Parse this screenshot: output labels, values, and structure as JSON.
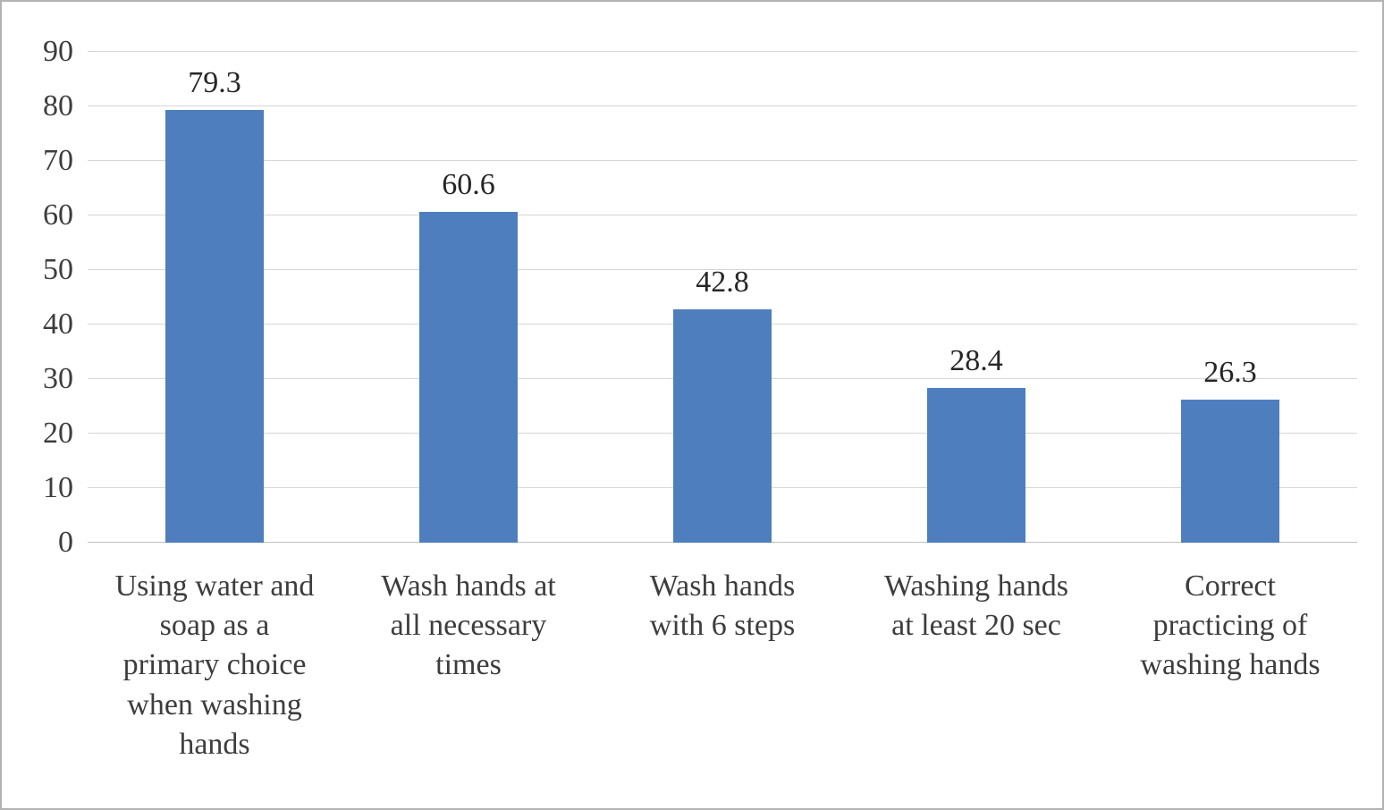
{
  "chart_data": {
    "type": "bar",
    "title": "",
    "xlabel": "",
    "ylabel": "",
    "categories": [
      "Using water and soap as a primary choice when washing hands",
      "Wash hands at all necessary times",
      "Wash hands with 6 steps",
      "Washing hands at least 20 sec",
      "Correct practicing of washing hands"
    ],
    "categories_lines": [
      [
        "Using water and",
        "soap as a",
        "primary choice",
        "when washing",
        "hands"
      ],
      [
        "Wash hands at",
        "all necessary",
        "times"
      ],
      [
        "Wash hands",
        "with 6 steps"
      ],
      [
        "Washing hands",
        "at least 20 sec"
      ],
      [
        "Correct",
        "practicing of",
        "washing hands"
      ]
    ],
    "values": [
      79.3,
      60.6,
      42.8,
      28.4,
      26.3
    ],
    "labels": [
      "79.3",
      "60.6",
      "42.8",
      "28.4",
      "26.3"
    ],
    "ylim": [
      0,
      90
    ],
    "yticks": [
      0,
      10,
      20,
      30,
      40,
      50,
      60,
      70,
      80,
      90
    ],
    "grid": true,
    "legend": false,
    "bar_color": "#4e7ebd",
    "gridline_color": "#d6d6d6",
    "baseline_color": "#bfbfbf",
    "text_color": "#3d3d3d",
    "border_color": "#b3b3b3"
  }
}
